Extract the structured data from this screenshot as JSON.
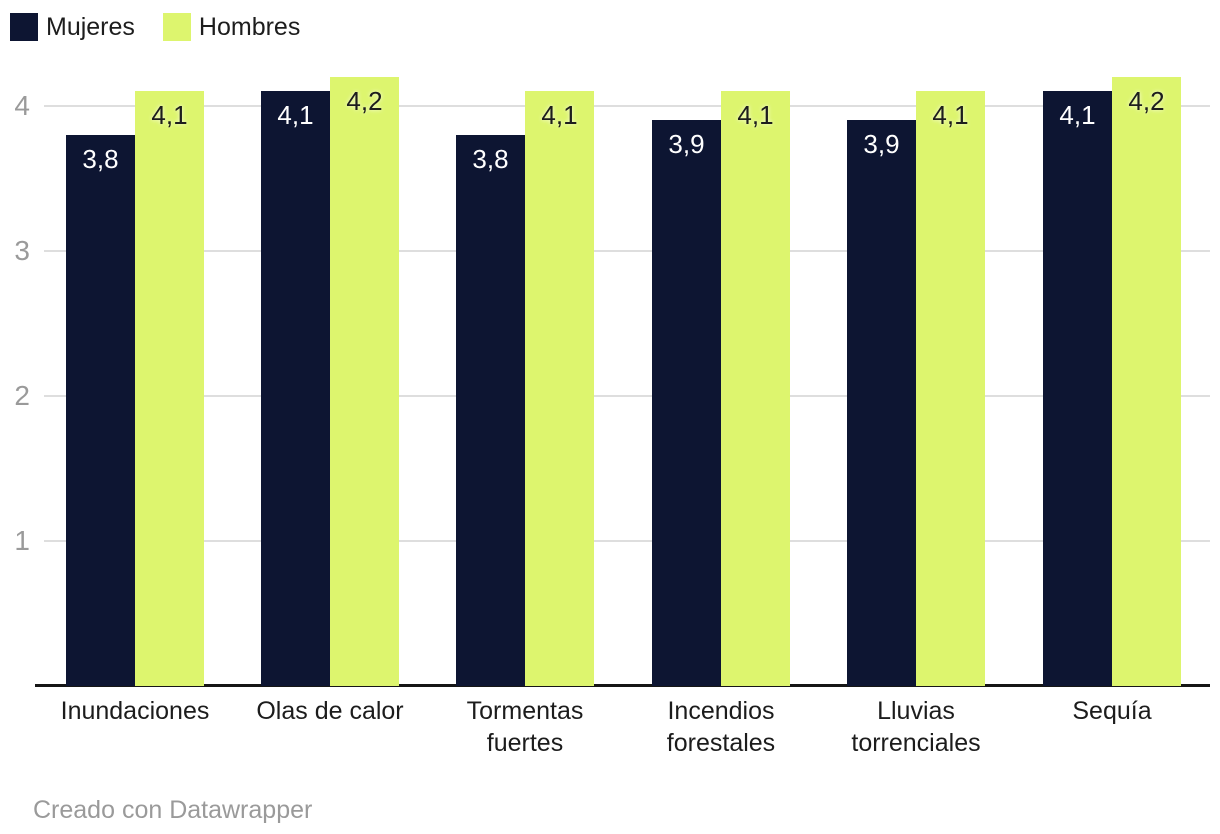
{
  "chart_data": {
    "type": "bar",
    "title": "",
    "categories": [
      "Inundaciones",
      "Olas de calor",
      "Tormentas fuertes",
      "Incendios forestales",
      "Lluvias torrenciales",
      "Sequía"
    ],
    "series": [
      {
        "name": "Mujeres",
        "color": "#0d1532",
        "label_color": "#ffffff",
        "values": [
          3.8,
          4.1,
          3.8,
          3.9,
          3.9,
          4.1
        ],
        "labels": [
          "3,8",
          "4,1",
          "3,8",
          "3,9",
          "3,9",
          "4,1"
        ]
      },
      {
        "name": "Hombres",
        "color": "#ddf56e",
        "label_color": "#1d1d1d",
        "values": [
          4.1,
          4.2,
          4.1,
          4.1,
          4.1,
          4.2
        ],
        "labels": [
          "4,1",
          "4,2",
          "4,1",
          "4,1",
          "4,1",
          "4,2"
        ]
      }
    ],
    "y_ticks": [
      1,
      2,
      3,
      4
    ],
    "ylim": [
      0,
      4.35
    ],
    "xlabel": "",
    "ylabel": "",
    "grid": true,
    "legend_position": "top-left"
  },
  "footer": {
    "attribution": "Creado con Datawrapper"
  },
  "colors": {
    "background": "#ffffff",
    "gridline": "#dedede",
    "axis_line": "#161616",
    "tick_label_color": "#9a9a9a",
    "category_label_color": "#1c1c1c",
    "footer_text_color": "#9a9a9a"
  }
}
